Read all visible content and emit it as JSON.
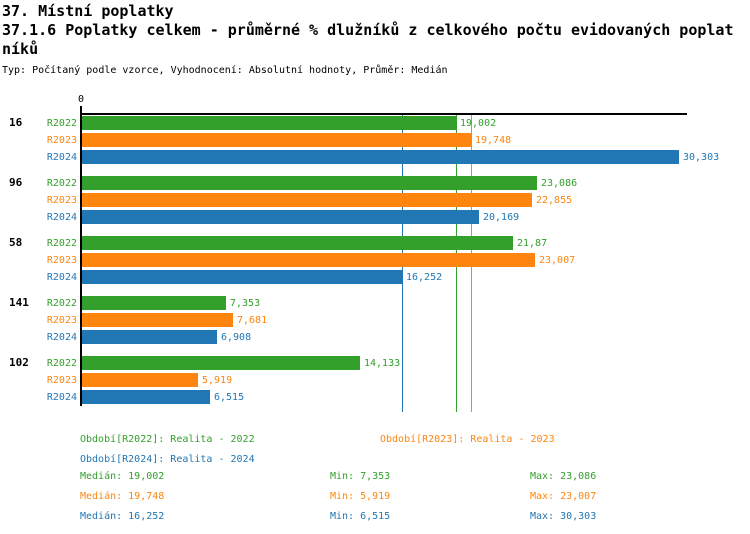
{
  "header": {
    "title": "37. Místní poplatky",
    "subtitle_line1": "37.1.6 Poplatky celkem - průměrné % dlužníků z celkového počtu evidovaných poplat",
    "subtitle_line2": "níků",
    "meta": "Typ: Počítaný podle vzorce, Vyhodnocení: Absolutní hodnoty, Průměr: Medián"
  },
  "colors": {
    "r2022": "#33A02C",
    "r2023": "#FF850E",
    "r2024": "#2177B4",
    "axis": "#000000",
    "background": "#FFFFFF"
  },
  "chart_data": {
    "type": "bar",
    "orientation": "horizontal",
    "title": "37.1.6 Poplatky celkem - průměrné % dlužníků z celkového počtu evidovaných poplatníků",
    "xlabel": "",
    "ylabel": "",
    "xlim": [
      0,
      30.7
    ],
    "x_axis": {
      "tick_values": [
        0
      ],
      "tick_labels": [
        "0"
      ]
    },
    "categories": [
      "16",
      "96",
      "58",
      "141",
      "102"
    ],
    "series": [
      {
        "name": "R2022",
        "color": "#33A02C",
        "values": [
          19.002,
          23.086,
          21.87,
          7.353,
          14.133
        ],
        "value_labels": [
          "19,002",
          "23,086",
          "21,87",
          "7,353",
          "14,133"
        ],
        "median": 19.002
      },
      {
        "name": "R2023",
        "color": "#FF850E",
        "values": [
          19.748,
          22.855,
          23.007,
          7.681,
          5.919
        ],
        "value_labels": [
          "19,748",
          "22,855",
          "23,007",
          "7,681",
          "5,919"
        ],
        "median": 19.748
      },
      {
        "name": "R2024",
        "color": "#2177B4",
        "values": [
          30.303,
          20.169,
          16.252,
          6.908,
          6.515
        ],
        "value_labels": [
          "30,303",
          "20,169",
          "16,252",
          "6,908",
          "6,515"
        ],
        "median": 16.252
      }
    ],
    "median_lines": [
      {
        "series": "R2022",
        "value": 19.002
      },
      {
        "series": "R2023",
        "value": 19.748
      },
      {
        "series": "R2024",
        "value": 16.252
      }
    ],
    "legend_position": "bottom"
  },
  "legend": {
    "items": [
      {
        "id": "R2022",
        "label": "Období[R2022]: Realita - 2022",
        "color": "#33A02C"
      },
      {
        "id": "R2023",
        "label": "Období[R2023]: Realita - 2023",
        "color": "#FF850E"
      },
      {
        "id": "R2024",
        "label": "Období[R2024]: Realita - 2024",
        "color": "#2177B4"
      }
    ],
    "stats": [
      {
        "series": "R2022",
        "median": "Medián: 19,002",
        "min": "Min: 7,353",
        "max": "Max: 23,086",
        "color": "#33A02C"
      },
      {
        "series": "R2023",
        "median": "Medián: 19,748",
        "min": "Min: 5,919",
        "max": "Max: 23,007",
        "color": "#FF850E"
      },
      {
        "series": "R2024",
        "median": "Medián: 16,252",
        "min": "Min: 6,515",
        "max": "Max: 30,303",
        "color": "#2177B4"
      }
    ]
  }
}
